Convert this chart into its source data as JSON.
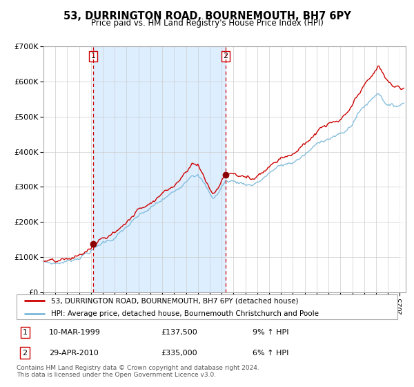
{
  "title": "53, DURRINGTON ROAD, BOURNEMOUTH, BH7 6PY",
  "subtitle": "Price paid vs. HM Land Registry's House Price Index (HPI)",
  "legend_line1": "53, DURRINGTON ROAD, BOURNEMOUTH, BH7 6PY (detached house)",
  "legend_line2": "HPI: Average price, detached house, Bournemouth Christchurch and Poole",
  "transaction1_date": "10-MAR-1999",
  "transaction1_price": "£137,500",
  "transaction1_hpi": "9% ↑ HPI",
  "transaction2_date": "29-APR-2010",
  "transaction2_price": "£335,000",
  "transaction2_hpi": "6% ↑ HPI",
  "footer": "Contains HM Land Registry data © Crown copyright and database right 2024.\nThis data is licensed under the Open Government Licence v3.0.",
  "transaction1_year": 1999.19,
  "transaction2_year": 2010.33,
  "ylim": [
    0,
    700000
  ],
  "xlim_start": 1995.0,
  "xlim_end": 2025.5,
  "hpi_color": "#7ab8d9",
  "price_color": "#cc0000",
  "bg_shading_color": "#ddeeff",
  "dot_color": "#8b0000",
  "vline_color": "#cc0000",
  "grid_color": "#cccccc",
  "background_color": "#ffffff"
}
